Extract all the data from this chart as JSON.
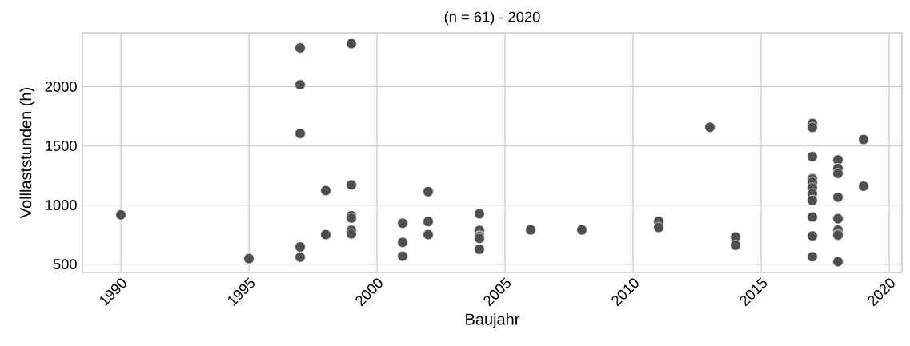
{
  "chart_data": {
    "type": "scatter",
    "title": "(n = 61) - 2020",
    "xlabel": "Baujahr",
    "ylabel": "Volllaststunden (h)",
    "x": [
      1990,
      1995,
      1997,
      1997,
      1997,
      1997,
      1997,
      1998,
      1998,
      1999,
      1999,
      1999,
      1999,
      1999,
      1999,
      1999,
      2001,
      2001,
      2001,
      2002,
      2002,
      2002,
      2004,
      2004,
      2004,
      2004,
      2004,
      2004,
      2006,
      2008,
      2011,
      2011,
      2011,
      2013,
      2014,
      2014,
      2017,
      2017,
      2017,
      2017,
      2017,
      2017,
      2017,
      2017,
      2017,
      2017,
      2017,
      2017,
      2017,
      2018,
      2018,
      2018,
      2018,
      2018,
      2018,
      2018,
      2018,
      2018,
      2018,
      2019,
      2019
    ],
    "values": [
      917,
      547,
      2327,
      2016,
      1604,
      646,
      559,
      1122,
      750,
      2363,
      1171,
      910,
      890,
      790,
      785,
      757,
      847,
      685,
      568,
      1113,
      860,
      750,
      926,
      786,
      740,
      734,
      718,
      626,
      790,
      790,
      864,
      860,
      811,
      1657,
      730,
      660,
      1689,
      1655,
      1409,
      1226,
      1220,
      1193,
      1145,
      1096,
      1040,
      1040,
      899,
      739,
      563,
      1381,
      1309,
      1267,
      1066,
      885,
      885,
      788,
      755,
      746,
      521,
      1553,
      1159
    ],
    "color": "#4f4f4f",
    "marker": "circle",
    "grid": true,
    "xlim": [
      1988.5,
      2020.5
    ],
    "ylim": [
      430,
      2455
    ],
    "xticks": [
      1990,
      1995,
      2000,
      2005,
      2010,
      2015,
      2020
    ],
    "yticks": [
      500,
      1000,
      1500,
      2000
    ]
  }
}
